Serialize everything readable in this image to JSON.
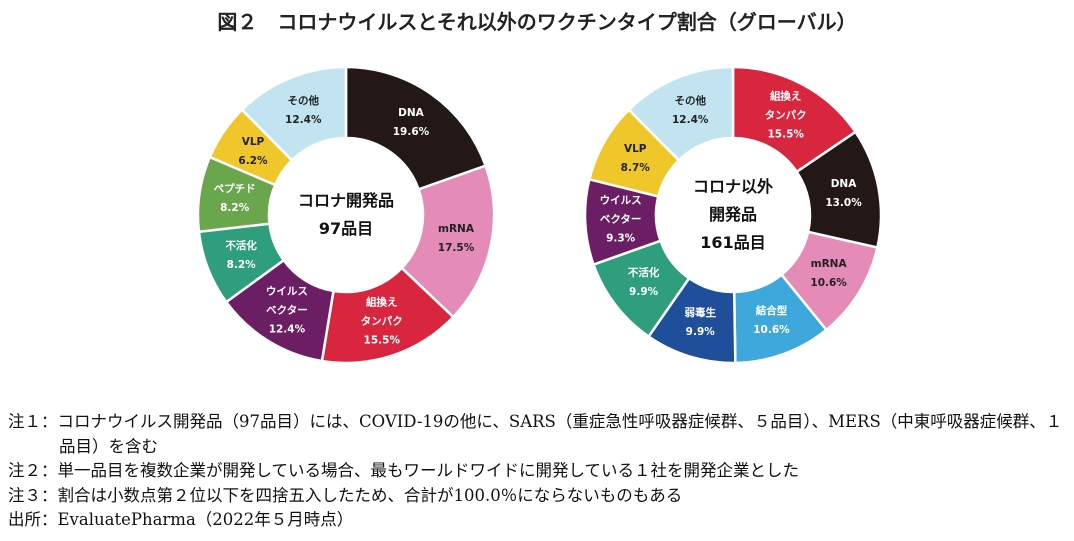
{
  "title": "図２　コロナウイルスとそれ以外のワクチンタイプ割合（グローバル）",
  "notes": [
    "注１：コロナウイルス開発品（97品目）には、COVID-19の他に、SARS（重症急性呼吸器症候群、５品目）、MERS（中東呼吸器症候群、１品目）を含む",
    "注２：単一品目を複数企業が開発している場合、最もワールドワイドに開発している１社を開発企業とした",
    "注３：割合は小数点第２位以下を四捨五入したため、合計が100.0％にならないものもある",
    "出所：EvaluatePharma（2022年５月時点）"
  ],
  "chart_data": [
    {
      "type": "pie",
      "title": "コロナ開発品\n97品目",
      "categories": [
        "DNA",
        "mRNA",
        "組換え\nタンパク",
        "ウイルス\nベクター",
        "不活化",
        "ペプチド",
        "VLP",
        "その他"
      ],
      "values": [
        19.6,
        17.5,
        15.5,
        12.4,
        8.2,
        8.2,
        6.2,
        12.4
      ],
      "value_labels": [
        "19.6%",
        "17.5%",
        "15.5%",
        "12.4%",
        "8.2%",
        "8.2%",
        "6.2%",
        "12.4%"
      ],
      "colors": [
        "#231815",
        "#e48bb8",
        "#d9263f",
        "#6b1e63",
        "#2f9e7d",
        "#6aa64c",
        "#f0c72a",
        "#c2e4f1"
      ]
    },
    {
      "type": "pie",
      "title": "コロナ以外\n開発品\n161品目",
      "categories": [
        "組換え\nタンパク",
        "DNA",
        "mRNA",
        "結合型",
        "弱毒生",
        "不活化",
        "ウイルス\nベクター",
        "VLP",
        "その他"
      ],
      "values": [
        15.5,
        13.0,
        10.6,
        10.6,
        9.9,
        9.9,
        9.3,
        8.7,
        12.4
      ],
      "value_labels": [
        "15.5%",
        "13.0%",
        "10.6%",
        "10.6%",
        "9.9%",
        "9.9%",
        "9.3%",
        "8.7%",
        "12.4%"
      ],
      "colors": [
        "#d9263f",
        "#231815",
        "#e48bb8",
        "#3ea8dc",
        "#1f4f9b",
        "#2f9e7d",
        "#6b1e63",
        "#f0c72a",
        "#c2e4f1"
      ]
    }
  ]
}
